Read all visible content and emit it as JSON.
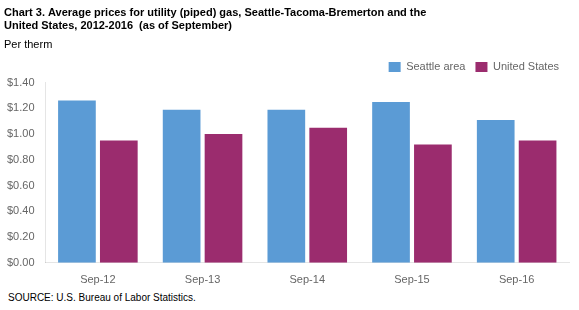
{
  "chart_data": {
    "type": "bar",
    "title": "Chart 3. Average prices for utility (piped) gas, Seattle-Tacoma-Bremerton and the\nUnited States, 2012-2016  (as of September)",
    "ylabel": "Per therm",
    "source": "SOURCE: U.S. Bureau of Labor Statistics.",
    "categories": [
      "Sep-12",
      "Sep-13",
      "Sep-14",
      "Sep-15",
      "Sep-16"
    ],
    "series": [
      {
        "name": "Seattle area",
        "color": "#5B9BD5",
        "values": [
          1.26,
          1.19,
          1.19,
          1.25,
          1.11
        ]
      },
      {
        "name": "United States",
        "color": "#9B2C6E",
        "values": [
          0.95,
          1.0,
          1.05,
          0.92,
          0.95
        ]
      }
    ],
    "ylim": [
      0,
      1.4
    ],
    "yticks": [
      {
        "value": 0,
        "label": "$0.00"
      },
      {
        "value": 0.2,
        "label": "$0.20"
      },
      {
        "value": 0.4,
        "label": "$0.40"
      },
      {
        "value": 0.6,
        "label": "$0.60"
      },
      {
        "value": 0.8,
        "label": "$0.80"
      },
      {
        "value": 1.0,
        "label": "$1.00"
      },
      {
        "value": 1.2,
        "label": "$1.20"
      },
      {
        "value": 1.4,
        "label": "$1.40"
      }
    ],
    "legend": "upper right",
    "grid": false
  }
}
